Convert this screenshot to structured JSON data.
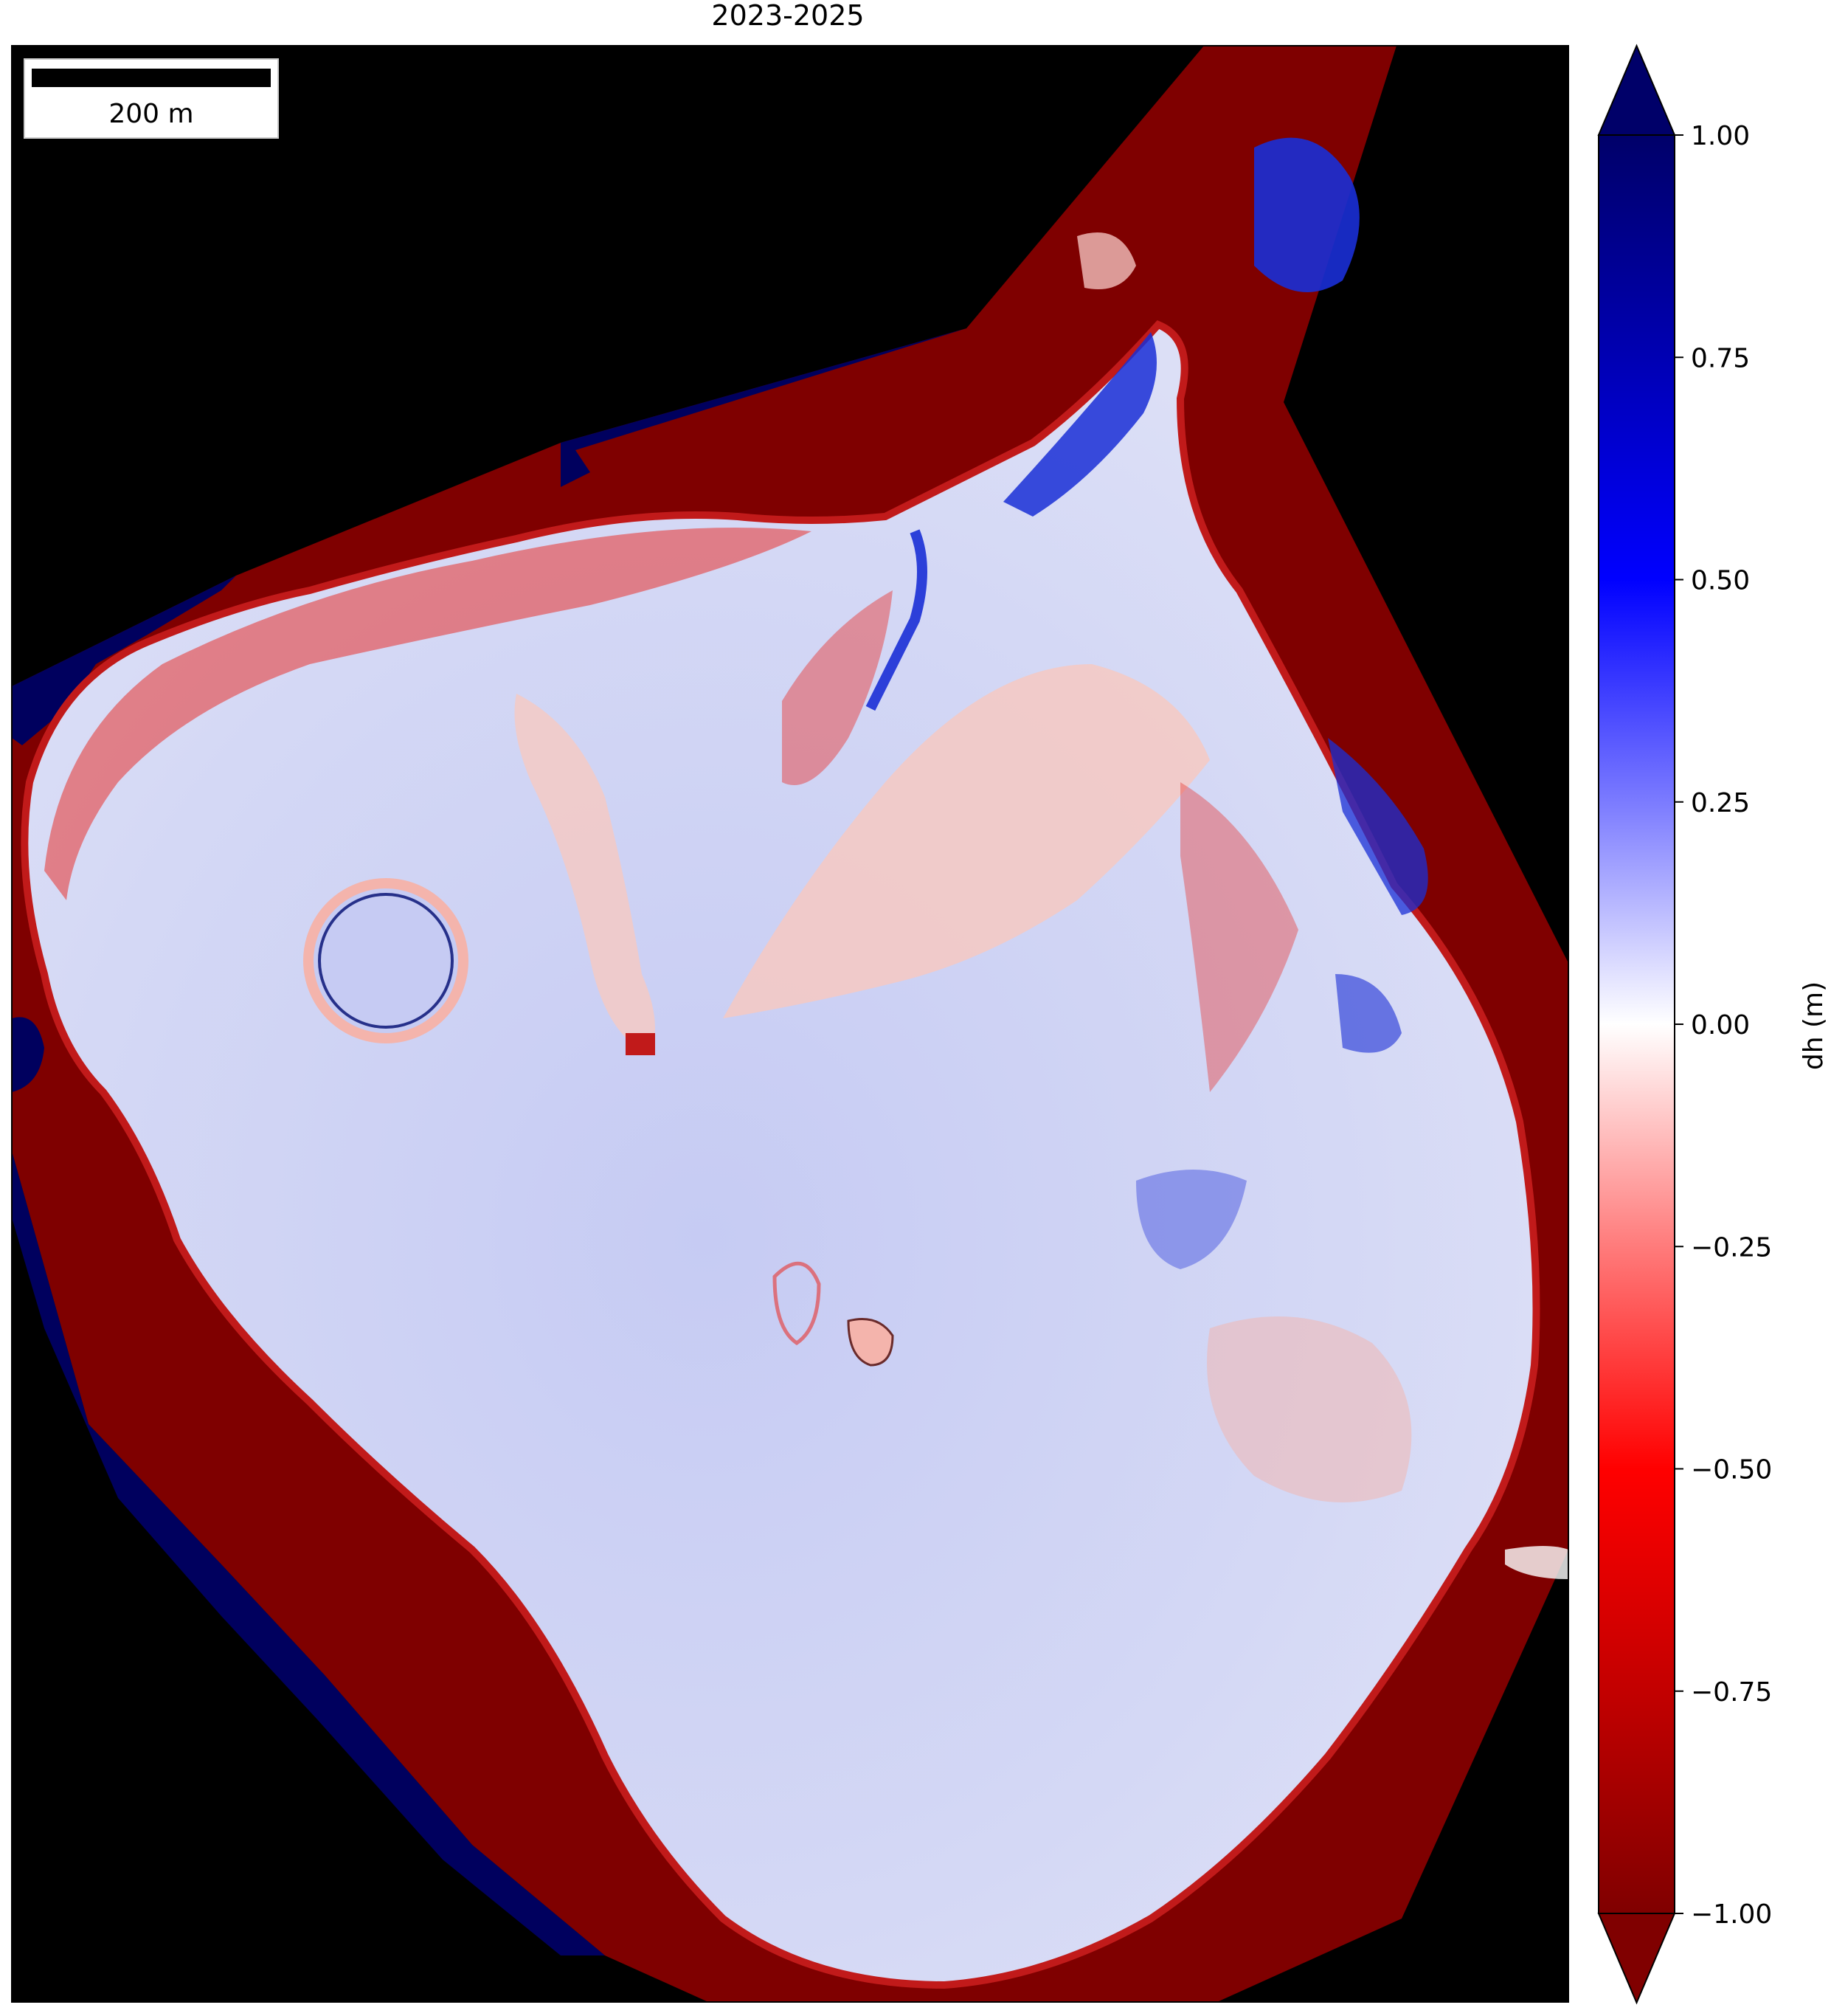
{
  "title": "2023-2025",
  "scale_bar": {
    "label": "200 m"
  },
  "colorbar": {
    "label": "dh (m)",
    "min": -1.0,
    "max": 1.0,
    "extend": "both",
    "colormap": "seismic_r",
    "colors": {
      "low": "#800000",
      "mid": "#ffffff",
      "high": "#000080"
    },
    "ticks": [
      "1.00",
      "0.75",
      "0.50",
      "0.25",
      "0.00",
      "−0.25",
      "−0.50",
      "−0.75",
      "−1.00"
    ]
  },
  "map": {
    "nodata_color": "#000000",
    "surface_colors": {
      "deep_red": "#7f0000",
      "red": "#e8332e",
      "pale_red": "#f6c9c2",
      "pale_blue": "#d9dcf5",
      "light_blue": "#c6cbf3",
      "blue": "#1a2fd6",
      "navy": "#00005e"
    }
  }
}
